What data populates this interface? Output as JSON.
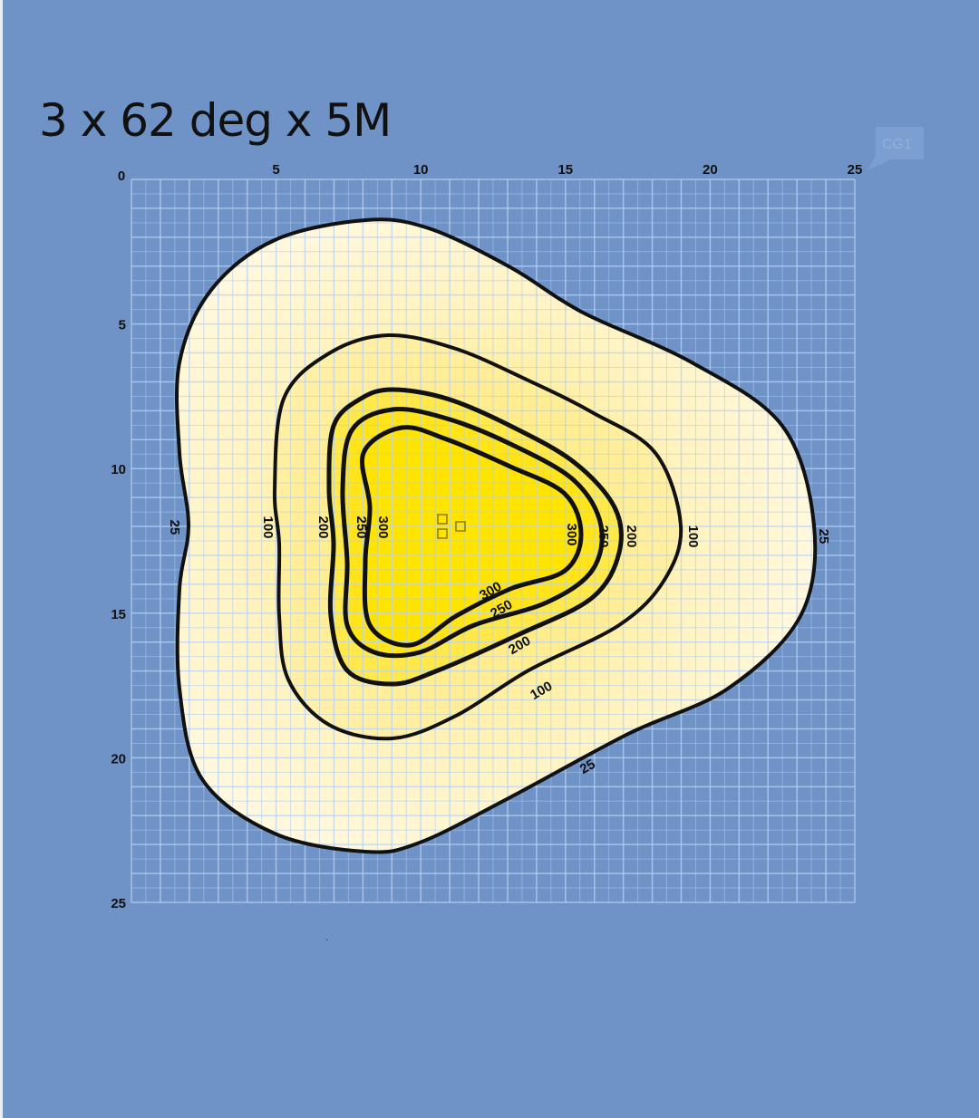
{
  "title": "3 x 62 deg x 5M",
  "tag": "CG1",
  "chart_data": {
    "type": "contour",
    "title": "3 x 62 deg x 5M",
    "x_ticks": [
      "0",
      "5",
      "10",
      "15",
      "20",
      "25"
    ],
    "y_ticks": [
      "0",
      "5",
      "10",
      "15",
      "20",
      "25"
    ],
    "xlim": [
      0,
      25
    ],
    "ylim": [
      0,
      25
    ],
    "grid": true,
    "levels": [
      25,
      100,
      200,
      250,
      300
    ],
    "level_labels": [
      "25",
      "100",
      "200",
      "250",
      "300"
    ],
    "colors": {
      "background": "#6f93c6",
      "outer": "#fff6d2",
      "inner": "#ffe400",
      "line": "#111111"
    }
  }
}
